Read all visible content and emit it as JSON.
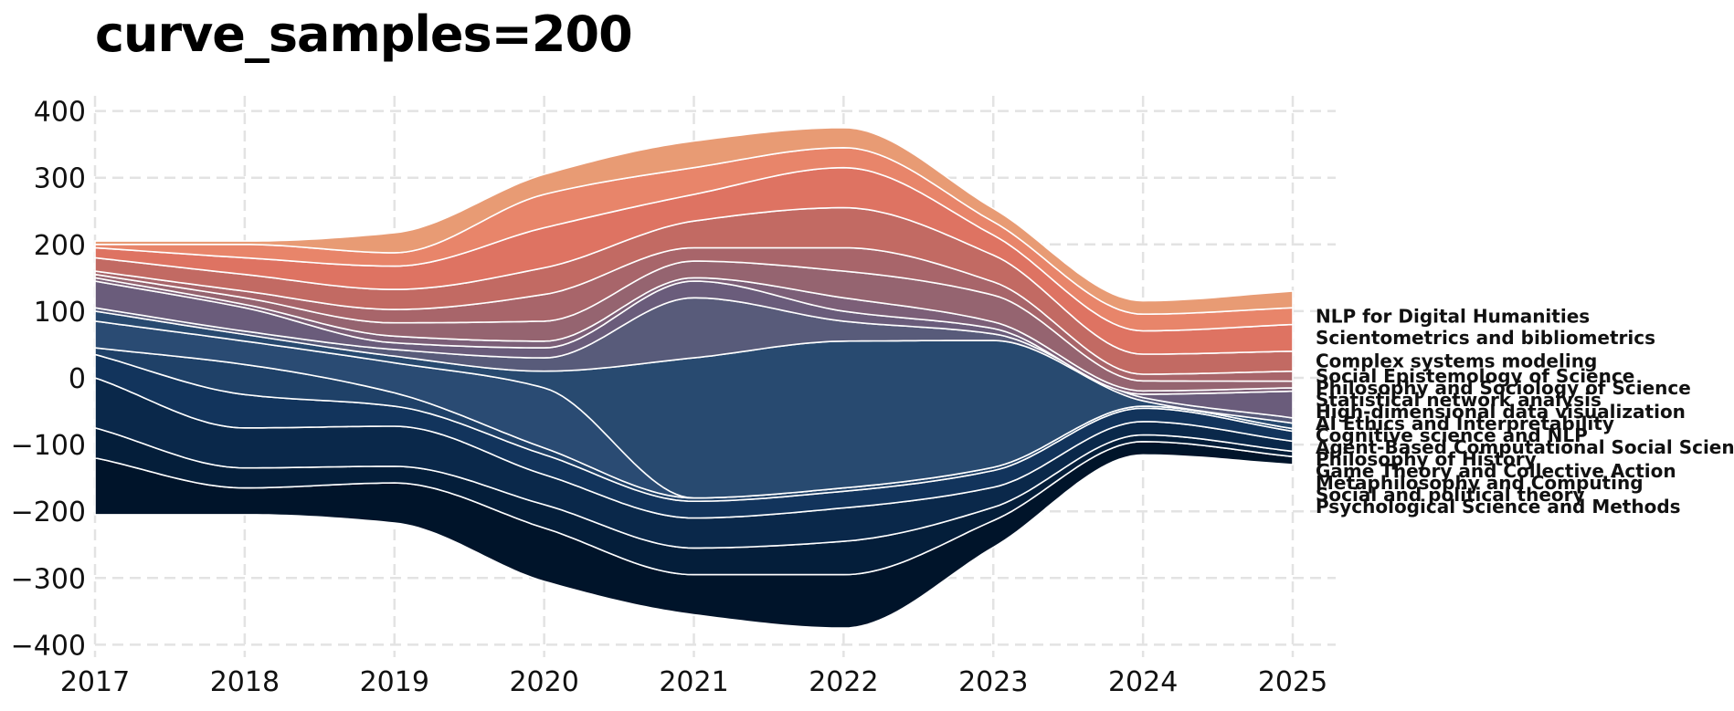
{
  "chart_data": {
    "type": "area",
    "title": "curve_samples=200",
    "xlabel": "",
    "ylabel": "",
    "x": [
      2017,
      2018,
      2019,
      2020,
      2021,
      2022,
      2023,
      2024,
      2025
    ],
    "x_ticks": [
      "2017",
      "2018",
      "2019",
      "2020",
      "2021",
      "2022",
      "2023",
      "2024",
      "2025"
    ],
    "y_ticks": [
      "400",
      "300",
      "200",
      "100",
      "0",
      "−100",
      "−200",
      "−300",
      "−400"
    ],
    "ylim": [
      -420,
      420
    ],
    "xlim": [
      2017,
      2025.3
    ],
    "grid": true,
    "baseline": "symmetric",
    "series": [
      {
        "name": "Psychological Science and Methods",
        "values": [
          85,
          40,
          60,
          80,
          60,
          80,
          40,
          20,
          12
        ],
        "color": "#00142a"
      },
      {
        "name": "Social and political theory",
        "values": [
          45,
          30,
          25,
          35,
          40,
          50,
          20,
          10,
          8
        ],
        "color": "#041e3a"
      },
      {
        "name": "Metaphilosophy and Computing",
        "values": [
          75,
          60,
          60,
          45,
          45,
          50,
          30,
          20,
          15
        ],
        "color": "#0a284a"
      },
      {
        "name": "Game Theory and Collective Action",
        "values": [
          35,
          50,
          30,
          30,
          25,
          25,
          25,
          20,
          15
        ],
        "color": "#12345c"
      },
      {
        "name": "Philosophy of History",
        "values": [
          10,
          45,
          20,
          10,
          5,
          5,
          5,
          3,
          4
        ],
        "color": "#1f4168"
      },
      {
        "name": "Agent-Based Computational Social Science",
        "values": [
          40,
          35,
          45,
          90,
          0,
          0,
          0,
          0,
          0
        ],
        "color": "#2a4b73"
      },
      {
        "name": "Cognitive science and NLP",
        "values": [
          15,
          10,
          10,
          25,
          210,
          220,
          190,
          8,
          8
        ],
        "color": "#284a70"
      },
      {
        "name": "AI Ethics and Interpretability",
        "values": [
          5,
          5,
          10,
          20,
          90,
          30,
          10,
          5,
          8
        ],
        "color": "#585b7a"
      },
      {
        "name": "High-dimensional data visualization",
        "values": [
          40,
          35,
          10,
          15,
          25,
          15,
          8,
          5,
          40
        ],
        "color": "#6a5c7b"
      },
      {
        "name": "Statistical network analysis",
        "values": [
          5,
          5,
          10,
          10,
          5,
          20,
          10,
          5,
          5
        ],
        "color": "#7c5f78"
      },
      {
        "name": "Philosophy and Sociology of Science",
        "values": [
          5,
          10,
          20,
          30,
          25,
          40,
          40,
          15,
          10
        ],
        "color": "#956470"
      },
      {
        "name": "Social Epistemology of Science",
        "values": [
          5,
          10,
          20,
          40,
          20,
          35,
          20,
          10,
          15
        ],
        "color": "#a8656a"
      },
      {
        "name": "Complex systems modeling",
        "values": [
          20,
          25,
          30,
          40,
          40,
          60,
          40,
          30,
          30
        ],
        "color": "#c26a63"
      },
      {
        "name": "Scientometrics and bibliometrics",
        "values": [
          15,
          25,
          35,
          60,
          40,
          60,
          30,
          35,
          40
        ],
        "color": "#de7362"
      },
      {
        "name": "NLP for Digital Humanities",
        "values": [
          5,
          20,
          20,
          50,
          40,
          30,
          20,
          25,
          25
        ],
        "color": "#e8856a"
      },
      {
        "name": "",
        "values": [
          5,
          5,
          30,
          30,
          40,
          30,
          20,
          20,
          25
        ],
        "color": "#e89b74"
      }
    ]
  }
}
